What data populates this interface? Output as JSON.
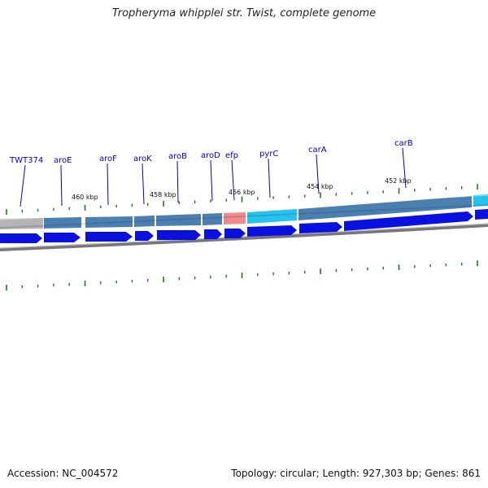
{
  "title": "Tropheryma whipplei str. Twist, complete genome",
  "footer": {
    "accession": "Accession: NC_004572",
    "summary": "Topology: circular; Length: 927,303 bp; Genes: 861"
  },
  "gene_labels": [
    "TWT374",
    "aroE",
    "aroF",
    "aroK",
    "aroB",
    "aroD",
    "efp",
    "pyrC",
    "carA",
    "carB"
  ],
  "scale_labels": [
    "460 kbp",
    "458 kbp",
    "456 kbp",
    "454 kbp",
    "452 kbp"
  ],
  "colors": {
    "gene_label": "#0000cc",
    "cds_arrow": "#0a10e0",
    "tick": "#1a7a1a",
    "backbone": "#8a8a8a",
    "feature_gray": "#b4b4b4",
    "feature_steel": "#4a7fb0",
    "feature_salmon": "#f08a8a",
    "feature_cyan": "#22c4ee"
  }
}
